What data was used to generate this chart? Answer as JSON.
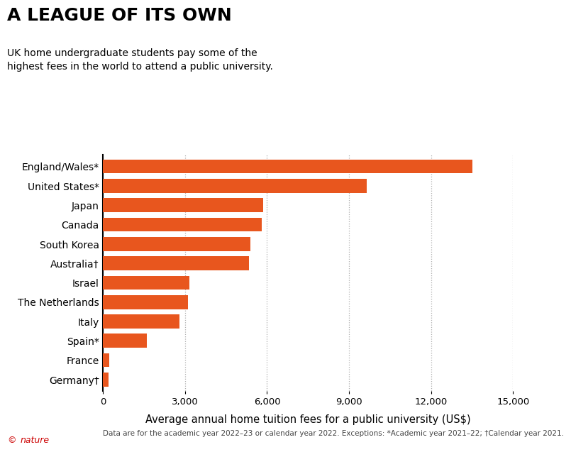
{
  "title": "A LEAGUE OF ITS OWN",
  "subtitle": "UK home undergraduate students pay some of the\nhighest fees in the world to attend a public university.",
  "countries": [
    "England/Wales*",
    "United States*",
    "Japan",
    "Canada",
    "South Korea",
    "Australia†",
    "Israel",
    "The Netherlands",
    "Italy",
    "Spain*",
    "France",
    "Germany†"
  ],
  "values": [
    13500,
    9650,
    5860,
    5800,
    5400,
    5350,
    3150,
    3100,
    2800,
    1600,
    230,
    200
  ],
  "bar_color": "#e8561e",
  "xlabel": "Average annual home tuition fees for a public university (US$)",
  "xlim": [
    0,
    15000
  ],
  "xticks": [
    0,
    3000,
    6000,
    9000,
    12000,
    15000
  ],
  "xtick_labels": [
    "0",
    "3,000",
    "6,000",
    "9,000",
    "12,000",
    "15,000"
  ],
  "footnote": "Data are for the academic year 2022–23 or calendar year 2022. Exceptions: *Academic year 2021–22; †Calendar year 2021.",
  "grid_color": "#b0b0b0",
  "background_color": "#ffffff",
  "nature_color": "#cc0000",
  "title_fontsize": 18,
  "subtitle_fontsize": 10,
  "xlabel_fontsize": 10.5,
  "ytick_fontsize": 10,
  "xtick_fontsize": 9.5,
  "footnote_fontsize": 7.5,
  "nature_fontsize": 9
}
